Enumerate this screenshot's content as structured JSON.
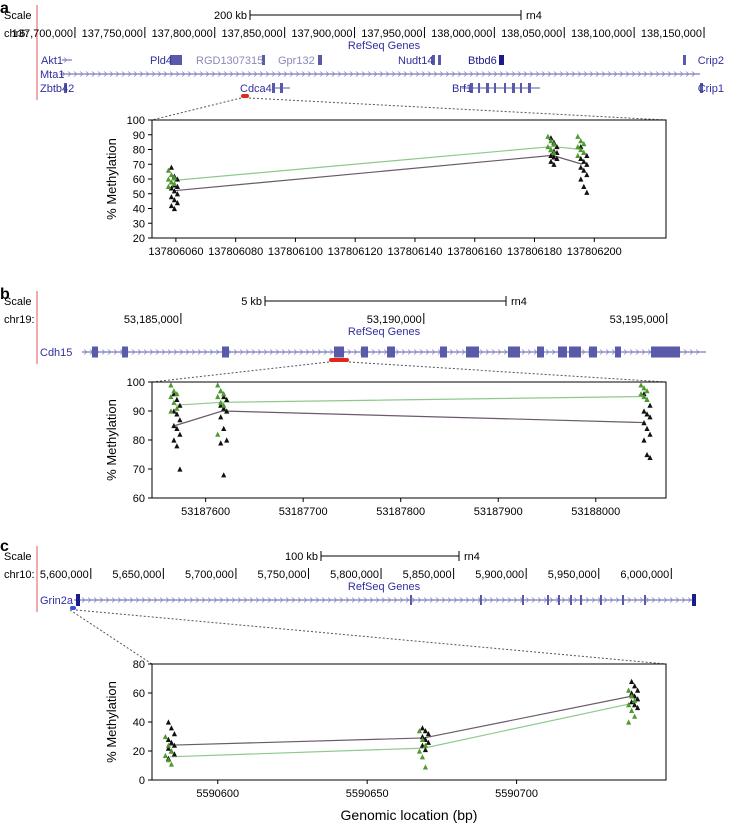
{
  "chart_data": [
    {
      "panel_label": "a",
      "type": "scatter",
      "browser": {
        "scale_label": "Scale",
        "chrom_label": "chr6:",
        "scale_bar_text": "200 kb",
        "assembly": "rn4",
        "coord_ticks": [
          "137,700,000",
          "137,750,000",
          "137,800,000",
          "137,850,000",
          "137,900,000",
          "137,950,000",
          "138,000,000",
          "138,050,000",
          "138,100,000",
          "138,150,000"
        ],
        "track_title": "RefSeq Genes",
        "genes": [
          "Akt1",
          "Pld4",
          "RGD1307315",
          "Gpr132",
          "Nudt14",
          "Btbd6",
          "Crip2",
          "Mta1",
          "Zbtb42",
          "Cdca4",
          "Brf1",
          "Crip1"
        ]
      },
      "xlabel": "",
      "ylabel": "% Methylation",
      "xlim": [
        137806052,
        137806224
      ],
      "ylim": [
        20,
        100
      ],
      "x_ticks": [
        137806060,
        137806080,
        137806100,
        137806120,
        137806140,
        137806160,
        137806180,
        137806200
      ],
      "x_tick_labels": [
        "137806060",
        "137806080",
        "137806100",
        "137806120",
        "137806140",
        "137806160",
        "137806180",
        "137806200"
      ],
      "y_ticks": [
        20,
        30,
        40,
        50,
        60,
        70,
        80,
        90,
        100
      ],
      "y_tick_labels": [
        "20",
        "30",
        "40",
        "50",
        "60",
        "70",
        "80",
        "90",
        "100"
      ],
      "cpg_positions": [
        137806059,
        137806186,
        137806196
      ],
      "series": [
        {
          "marker": "black-triangle",
          "mean": [
            52,
            76,
            70
          ],
          "points": [
            [
              68,
              62,
              60,
              58,
              56,
              55,
              54,
              52,
              50,
              48,
              46,
              44,
              42,
              40
            ],
            [
              88,
              85,
              82,
              80,
              79,
              78,
              76,
              75,
              74,
              72,
              70
            ],
            [
              82,
              78,
              76,
              74,
              72,
              70,
              68,
              66,
              63,
              60,
              55,
              51
            ]
          ]
        },
        {
          "marker": "green-triangle",
          "mean": [
            59,
            82,
            80
          ],
          "points": [
            [
              66,
              63,
              61,
              60,
              58,
              57,
              55
            ],
            [
              89,
              86,
              84,
              82,
              80,
              78
            ],
            [
              89,
              86,
              84,
              82,
              80,
              78,
              76
            ]
          ]
        }
      ]
    },
    {
      "panel_label": "b",
      "type": "scatter",
      "browser": {
        "scale_label": "Scale",
        "chrom_label": "chr19:",
        "scale_bar_text": "5 kb",
        "assembly": "rn4",
        "coord_ticks": [
          "53,185,000",
          "53,190,000",
          "53,195,000"
        ],
        "track_title": "RefSeq Genes",
        "genes": [
          "Cdh15"
        ]
      },
      "xlabel": "",
      "ylabel": "% Methylation",
      "xlim": [
        53187545,
        53188072
      ],
      "ylim": [
        60,
        100
      ],
      "x_ticks": [
        53187600,
        53187700,
        53187800,
        53187900,
        53188000
      ],
      "x_tick_labels": [
        "53187600",
        "53187700",
        "53187800",
        "53187900",
        "53188000"
      ],
      "y_ticks": [
        60,
        70,
        80,
        90,
        100
      ],
      "y_tick_labels": [
        "60",
        "70",
        "80",
        "90",
        "100"
      ],
      "cpg_positions": [
        53187569,
        53187617,
        53188051
      ],
      "series": [
        {
          "marker": "black-triangle",
          "mean": [
            85,
            90,
            86
          ],
          "points": [
            [
              96,
              94,
              92,
              90,
              89,
              87,
              85,
              84,
              82,
              80,
              78,
              70
            ],
            [
              97,
              95,
              94,
              92,
              91,
              90,
              88,
              84,
              80,
              79,
              68
            ],
            [
              96,
              94,
              92,
              90,
              89,
              88,
              86,
              84,
              82,
              80,
              75,
              74
            ]
          ]
        },
        {
          "marker": "green-triangle",
          "mean": [
            92,
            93,
            95
          ],
          "points": [
            [
              99,
              97,
              96,
              95,
              93,
              91,
              90
            ],
            [
              99,
              97,
              96,
              95,
              93,
              92,
              82
            ],
            [
              99,
              98,
              97,
              96,
              95,
              94
            ]
          ]
        }
      ]
    },
    {
      "panel_label": "c",
      "type": "scatter",
      "browser": {
        "scale_label": "Scale",
        "chrom_label": "chr10:",
        "scale_bar_text": "100 kb",
        "assembly": "rn4",
        "coord_ticks": [
          "5,600,000",
          "5,650,000",
          "5,700,000",
          "5,750,000",
          "5,800,000",
          "5,850,000",
          "5,900,000",
          "5,950,000",
          "6,000,000"
        ],
        "track_title": "RefSeq Genes",
        "genes": [
          "Grin2a"
        ]
      },
      "xlabel": "Genomic location (bp)",
      "ylabel": "% Methylation",
      "xlim": [
        5590578,
        5590750
      ],
      "ylim": [
        0,
        80
      ],
      "x_ticks": [
        5590600,
        5590650,
        5590700
      ],
      "x_tick_labels": [
        "5590600",
        "5590650",
        "5590700"
      ],
      "y_ticks": [
        0,
        20,
        40,
        60,
        80
      ],
      "y_tick_labels": [
        "0",
        "20",
        "40",
        "60",
        "80"
      ],
      "cpg_positions": [
        5590584,
        5590669,
        5590739
      ],
      "series": [
        {
          "marker": "black-triangle",
          "mean": [
            24,
            29,
            58
          ],
          "points": [
            [
              40,
              36,
              32,
              28,
              26,
              24,
              22,
              20,
              18,
              15
            ],
            [
              36,
              34,
              32,
              30,
              28,
              26,
              24,
              21
            ],
            [
              68,
              65,
              62,
              60,
              58,
              56,
              54,
              52,
              50
            ]
          ]
        },
        {
          "marker": "green-triangle",
          "mean": [
            16,
            22,
            53
          ],
          "points": [
            [
              30,
              24,
              20,
              17,
              14,
              11
            ],
            [
              34,
              28,
              24,
              20,
              16,
              9
            ],
            [
              62,
              58,
              55,
              52,
              48,
              44,
              40
            ]
          ]
        }
      ]
    }
  ]
}
